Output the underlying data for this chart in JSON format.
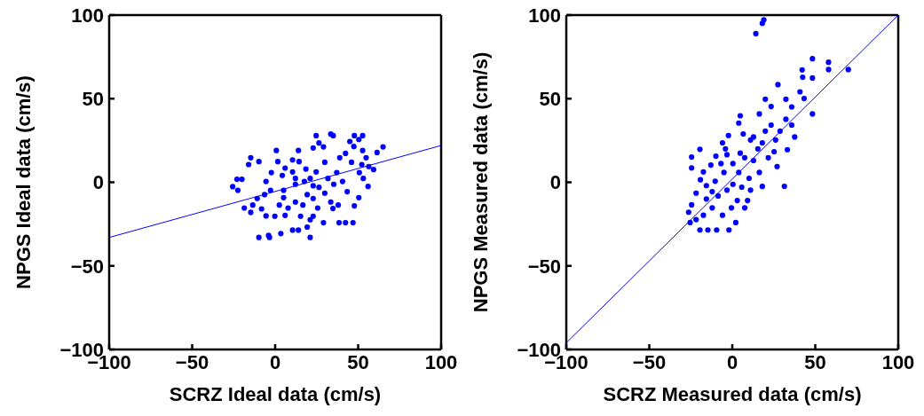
{
  "chart_data": [
    {
      "type": "scatter",
      "xlabel": "SCRZ Ideal data (cm/s)",
      "ylabel": "NPGS Ideal data (cm/s)",
      "grid": false,
      "legend": false,
      "xlim": [
        -100,
        100
      ],
      "ylim": [
        -100,
        100
      ],
      "xticks": [
        -100,
        -50,
        0,
        50,
        100
      ],
      "yticks": [
        -100,
        -50,
        0,
        50,
        100
      ],
      "series": [
        {
          "type": "scatter",
          "marker": "circle",
          "color": "#0000ff",
          "x": [
            -25.6,
            -23,
            -20,
            -22.5,
            -18.6,
            -16,
            -14.7,
            -14.7,
            -9.8,
            -9.8,
            -4,
            -3.4,
            3.4,
            10.5,
            14,
            19.3,
            21.1,
            0.7,
            1.6,
            10.5,
            14.4,
            14,
            24.7,
            22.9,
            26.4,
            33.5,
            35,
            29.1,
            47.7,
            52.7,
            50.4,
            45,
            47.4,
            52.7,
            54.8,
            61.4,
            65,
            59.3,
            56,
            50.4,
            47.7,
            46.9,
            42.4,
            38.5,
            29.1,
            34.8,
            22.9,
            21.1,
            15.3,
            6,
            -0.2,
            -5.5,
            -8.2,
            -13.5,
            -10.8,
            -6.4,
            -2.8,
            -5.5,
            -2.3,
            4.3,
            6,
            10.5,
            12.2,
            17.6,
            18.5,
            21.1,
            24.7,
            26.4,
            29.9,
            29.9,
            31.8,
            37.1,
            40.6,
            38.9,
            42.4,
            46,
            50.7,
            53.1,
            52.2,
            43.4,
            38,
            33.5,
            22.9,
            19.3,
            12.2,
            5.1,
            2.5,
            7.8,
            16.7,
            25.6,
            22.9,
            35.3,
            12.2,
            5.1,
            56.4
          ],
          "values": [
            -2.6,
            1.8,
            1.8,
            -4.8,
            -15.4,
            10.6,
            14.7,
            -18,
            12.4,
            -33,
            -31.8,
            -33,
            -30.7,
            -28.6,
            -28.6,
            -26.8,
            -33,
            19,
            12.4,
            13.4,
            12.4,
            19,
            27.9,
            20.5,
            23.5,
            28.8,
            27.9,
            21.2,
            27.9,
            27.9,
            25.6,
            24.4,
            21.4,
            19,
            14.7,
            17.8,
            21.2,
            7.6,
            -2.5,
            -9.2,
            -14.1,
            -24.2,
            -24.2,
            -24.2,
            -24.2,
            -15.7,
            -20.3,
            -22.4,
            -20.3,
            -19.8,
            -20.3,
            -20.1,
            -15.9,
            -13.6,
            -9.7,
            -7.4,
            -4.8,
            0.5,
            5.8,
            4.1,
            8.5,
            6.2,
            -1.2,
            0.5,
            7.9,
            2.3,
            6.2,
            -3,
            -6.5,
            12,
            2.3,
            5.8,
            0.5,
            14.7,
            17.3,
            12,
            5.8,
            2.3,
            10.6,
            -5.6,
            -13.6,
            -11.8,
            -9.7,
            -7.4,
            -11.8,
            -9.2,
            -13.6,
            -15.4,
            -13.6,
            -15.4,
            -2.1,
            -1.2,
            2.3,
            -4.8,
            9.4
          ]
        },
        {
          "type": "line",
          "marker": "none",
          "color": "#0000ff",
          "x": [
            -100,
            100
          ],
          "values": [
            -33,
            22
          ]
        }
      ]
    },
    {
      "type": "scatter",
      "xlabel": "SCRZ Measured data (cm/s)",
      "ylabel": "NPGS Measured data (cm/s)",
      "grid": false,
      "legend": false,
      "xlim": [
        -100,
        100
      ],
      "ylim": [
        -100,
        100
      ],
      "xticks": [
        -100,
        -50,
        0,
        50,
        100
      ],
      "yticks": [
        -100,
        -50,
        0,
        50,
        100
      ],
      "series": [
        {
          "type": "scatter",
          "marker": "circle",
          "color": "#0000ff",
          "x": [
            19,
            18.1,
            14.2,
            48.3,
            58,
            58,
            69.9,
            42.1,
            42.4,
            48.3,
            27.5,
            40.8,
            43.3,
            19.9,
            32.3,
            48.3,
            35.8,
            23.4,
            4.8,
            3.9,
            16.3,
            32.3,
            -2.3,
            -5.9,
            -19.5,
            -24.5,
            -24.5,
            -17.4,
            -9.9,
            -3.2,
            6.6,
            11,
            18.1,
            25.2,
            33.2,
            27,
            31.4,
            18.1,
            16.3,
            10.1,
            3.9,
            0.4,
            -6.8,
            -12.9,
            -19.2,
            -15.6,
            -21.8,
            -24.5,
            -26.3,
            -25.4,
            -19.5,
            -14.7,
            -9.4,
            -2,
            2.1,
            -5.9,
            -12.1,
            -8.5,
            -3.2,
            3,
            7.5,
            11,
            5.7,
            -15.6,
            -10.3,
            -5,
            -4.1,
            7.5,
            12.8,
            21.7,
            19.9,
            23.4,
            28.8,
            37.6,
            35.8,
            26.1,
            12.8,
            15.4,
            4.8,
            0.4,
            -12.1,
            9.2,
            -0.5,
            -17.4,
            -21.8
          ],
          "values": [
            97.2,
            95.1,
            88.9,
            73.9,
            71.8,
            67.4,
            67.4,
            67.2,
            62.8,
            62.4,
            58.4,
            54.1,
            50.1,
            49.7,
            49.7,
            40.9,
            45.1,
            45.3,
            39.8,
            35.4,
            40.9,
            37.7,
            28,
            23.6,
            19.7,
            15.1,
            8.6,
            6.2,
            15.6,
            16.5,
            28.9,
            25.3,
            23.6,
            18.3,
            19.5,
            9.4,
            -2.4,
            -2.5,
            5.9,
            2.4,
            5.9,
            11.2,
            11.2,
            10.3,
            1.5,
            -2,
            -6.5,
            -13.5,
            -17.9,
            -24.1,
            -28.5,
            -28.5,
            -28.5,
            -28.5,
            -24.1,
            -19.7,
            -15.3,
            -8.2,
            -4.7,
            -10.9,
            -15.3,
            -4.7,
            -2.9,
            -10,
            0.6,
            5.9,
            20,
            14.7,
            13,
            14.7,
            30.6,
            34.2,
            30.6,
            27.1,
            34.2,
            25.3,
            27.1,
            20,
            17.4,
            -1.2,
            -5.6,
            -10.9,
            -15.3,
            -19.7,
            -22.3
          ]
        },
        {
          "type": "line",
          "marker": "none",
          "color": "#0000ff",
          "x": [
            -100,
            100
          ],
          "values": [
            -96,
            100
          ]
        }
      ]
    }
  ]
}
